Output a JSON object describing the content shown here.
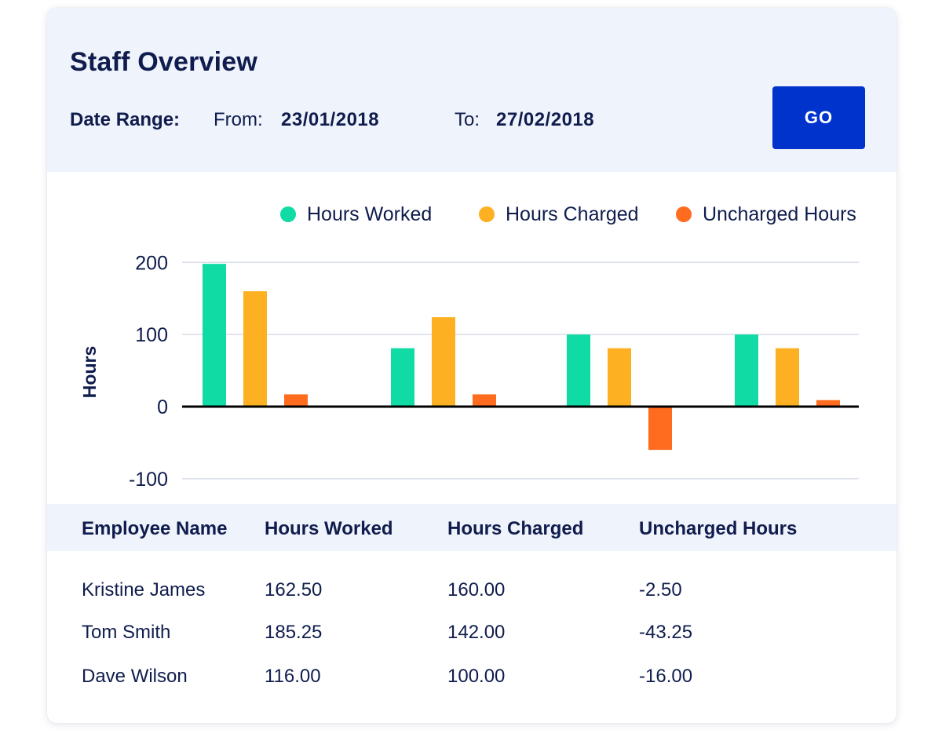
{
  "header": {
    "title": "Staff Overview",
    "date_range_label": "Date Range:",
    "from_label": "From:",
    "from_value": "23/01/2018",
    "to_label": "To:",
    "to_value": "27/02/2018",
    "go_label": "GO"
  },
  "colors": {
    "hours_worked": "#10dba4",
    "hours_charged": "#fdb022",
    "uncharged_hours": "#ff6b1f",
    "button": "#0033cc"
  },
  "chart_data": {
    "type": "bar",
    "ylabel": "Hours",
    "yticks": [
      "200",
      "100",
      "0",
      "-100"
    ],
    "ylim": [
      -110,
      200
    ],
    "grid": true,
    "legend_position": "top-right",
    "series": [
      {
        "name": "Hours Worked",
        "color": "#10dba4",
        "values": [
          198,
          81,
          100,
          100
        ]
      },
      {
        "name": "Hours Charged",
        "color": "#fdb022",
        "values": [
          160,
          124,
          81,
          81
        ]
      },
      {
        "name": "Uncharged Hours",
        "color": "#ff6b1f",
        "values": [
          17,
          17,
          -60,
          9
        ]
      }
    ]
  },
  "table": {
    "columns": [
      "Employee Name",
      "Hours Worked",
      "Hours Charged",
      "Uncharged Hours"
    ],
    "rows": [
      [
        "Kristine James",
        "162.50",
        "160.00",
        "-2.50"
      ],
      [
        "Tom Smith",
        "185.25",
        "142.00",
        "-43.25"
      ],
      [
        "Dave Wilson",
        "116.00",
        "100.00",
        "-16.00"
      ]
    ]
  }
}
